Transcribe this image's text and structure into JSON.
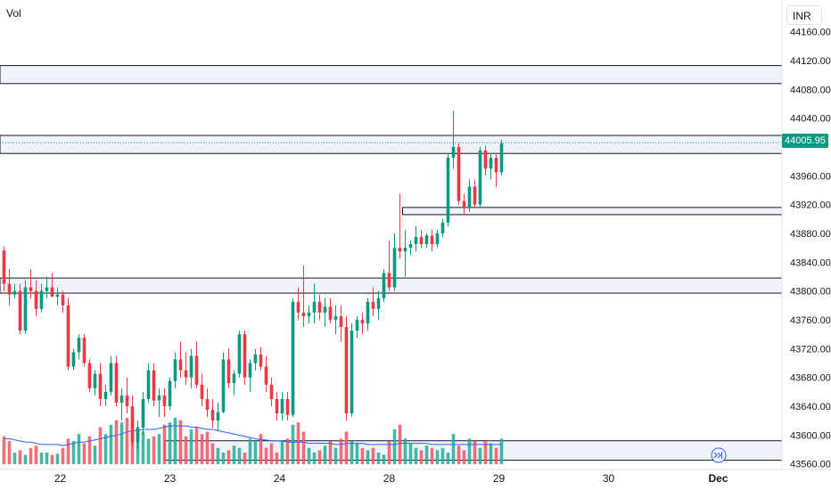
{
  "indicator_label": "Vol",
  "currency_label": "INR",
  "last_price_label": "44005.95",
  "colors": {
    "up": "#089981",
    "down": "#f23645",
    "up_vol": "#22ab94",
    "down_vol": "#f7525f",
    "ma_line": "#2962ff",
    "zone_fill": "#f0f3fa",
    "zone_stroke": "#131722"
  },
  "chart_data": {
    "type": "candlestick",
    "ylim": [
      43552,
      44180
    ],
    "y_ticks": [
      "44160.00",
      "44120.00",
      "44080.00",
      "44040.00",
      "43960.00",
      "43920.00",
      "43880.00",
      "43840.00",
      "43800.00",
      "43760.00",
      "43720.00",
      "43680.00",
      "43640.00",
      "43600.00",
      "43560.00"
    ],
    "x_ticks": [
      {
        "label": "22",
        "bar": 10.5
      },
      {
        "label": "23",
        "bar": 31
      },
      {
        "label": "24",
        "bar": 51.5
      },
      {
        "label": "28",
        "bar": 72
      },
      {
        "label": "29",
        "bar": 92.5
      },
      {
        "label": "30",
        "bar": 113
      },
      {
        "label": "Dec",
        "bar": 133.5,
        "bold": true
      }
    ],
    "last_price": 44005.95,
    "zones": [
      {
        "lo": 44088,
        "hi": 44113,
        "from_bar": -2,
        "to_bar": 160
      },
      {
        "lo": 43991,
        "hi": 44016,
        "from_bar": -2,
        "to_bar": 160
      },
      {
        "lo": 43906,
        "hi": 43916,
        "from_bar": 74.5,
        "to_bar": 160
      },
      {
        "lo": 43797,
        "hi": 43818,
        "from_bar": -2,
        "to_bar": 160
      },
      {
        "lo": 43565,
        "hi": 43592,
        "from_bar": 30,
        "to_bar": 160
      }
    ],
    "candles": [
      [
        43856,
        43862,
        43800,
        43810
      ],
      [
        43810,
        43830,
        43780,
        43795
      ],
      [
        43795,
        43810,
        43790,
        43800
      ],
      [
        43800,
        43810,
        43740,
        43745
      ],
      [
        43745,
        43815,
        43740,
        43805
      ],
      [
        43805,
        43830,
        43790,
        43800
      ],
      [
        43800,
        43815,
        43765,
        43775
      ],
      [
        43775,
        43810,
        43770,
        43800
      ],
      [
        43800,
        43820,
        43790,
        43805
      ],
      [
        43805,
        43825,
        43795,
        43792
      ],
      [
        43792,
        43805,
        43780,
        43795
      ],
      [
        43795,
        43800,
        43770,
        43780
      ],
      [
        43780,
        43790,
        43690,
        43695
      ],
      [
        43695,
        43720,
        43690,
        43715
      ],
      [
        43715,
        43740,
        43705,
        43735
      ],
      [
        43735,
        43740,
        43695,
        43700
      ],
      [
        43700,
        43705,
        43660,
        43665
      ],
      [
        43665,
        43690,
        43655,
        43685
      ],
      [
        43685,
        43700,
        43640,
        43650
      ],
      [
        43650,
        43670,
        43640,
        43660
      ],
      [
        43660,
        43710,
        43655,
        43700
      ],
      [
        43700,
        43710,
        43640,
        43645
      ],
      [
        43645,
        43665,
        43620,
        43655
      ],
      [
        43655,
        43680,
        43630,
        43640
      ],
      [
        43640,
        43655,
        43585,
        43590
      ],
      [
        43590,
        43620,
        43580,
        43610
      ],
      [
        43610,
        43660,
        43600,
        43650
      ],
      [
        43650,
        43700,
        43645,
        43690
      ],
      [
        43690,
        43700,
        43640,
        43648
      ],
      [
        43648,
        43665,
        43625,
        43655
      ],
      [
        43655,
        43665,
        43625,
        43640
      ],
      [
        43640,
        43680,
        43635,
        43675
      ],
      [
        43675,
        43715,
        43665,
        43705
      ],
      [
        43705,
        43730,
        43680,
        43690
      ],
      [
        43690,
        43715,
        43670,
        43680
      ],
      [
        43680,
        43720,
        43665,
        43710
      ],
      [
        43710,
        43730,
        43665,
        43670
      ],
      [
        43670,
        43685,
        43640,
        43650
      ],
      [
        43650,
        43665,
        43625,
        43635
      ],
      [
        43635,
        43650,
        43610,
        43620
      ],
      [
        43620,
        43645,
        43605,
        43632
      ],
      [
        43632,
        43715,
        43630,
        43705
      ],
      [
        43705,
        43720,
        43665,
        43672
      ],
      [
        43672,
        43690,
        43655,
        43685
      ],
      [
        43685,
        43745,
        43680,
        43740
      ],
      [
        43740,
        43745,
        43670,
        43680
      ],
      [
        43680,
        43705,
        43660,
        43700
      ],
      [
        43700,
        43720,
        43690,
        43712
      ],
      [
        43712,
        43722,
        43690,
        43695
      ],
      [
        43695,
        43710,
        43660,
        43670
      ],
      [
        43670,
        43680,
        43640,
        43650
      ],
      [
        43650,
        43660,
        43620,
        43630
      ],
      [
        43630,
        43660,
        43620,
        43650
      ],
      [
        43650,
        43660,
        43620,
        43628
      ],
      [
        43628,
        43790,
        43625,
        43785
      ],
      [
        43785,
        43805,
        43760,
        43770
      ],
      [
        43770,
        43835,
        43750,
        43765
      ],
      [
        43765,
        43780,
        43755,
        43770
      ],
      [
        43770,
        43810,
        43755,
        43785
      ],
      [
        43785,
        43795,
        43760,
        43770
      ],
      [
        43770,
        43790,
        43750,
        43778
      ],
      [
        43778,
        43790,
        43755,
        43760
      ],
      [
        43760,
        43780,
        43740,
        43765
      ],
      [
        43765,
        43780,
        43730,
        43750
      ],
      [
        43750,
        43765,
        43620,
        43630
      ],
      [
        43630,
        43755,
        43625,
        43745
      ],
      [
        43745,
        43765,
        43735,
        43760
      ],
      [
        43760,
        43770,
        43740,
        43755
      ],
      [
        43755,
        43790,
        43745,
        43785
      ],
      [
        43785,
        43805,
        43765,
        43775
      ],
      [
        43775,
        43800,
        43760,
        43790
      ],
      [
        43790,
        43830,
        43785,
        43825
      ],
      [
        43825,
        43870,
        43800,
        43805
      ],
      [
        43805,
        43880,
        43800,
        43860
      ],
      [
        43860,
        43935,
        43845,
        43855
      ],
      [
        43855,
        43885,
        43820,
        43860
      ],
      [
        43860,
        43870,
        43850,
        43865
      ],
      [
        43865,
        43890,
        43855,
        43875
      ],
      [
        43875,
        43885,
        43860,
        43865
      ],
      [
        43865,
        43880,
        43860,
        43877
      ],
      [
        43877,
        43885,
        43855,
        43865
      ],
      [
        43865,
        43885,
        43860,
        43880
      ],
      [
        43880,
        43900,
        43875,
        43895
      ],
      [
        43895,
        43990,
        43890,
        43985
      ],
      [
        43985,
        44050,
        43970,
        44000
      ],
      [
        44000,
        44005,
        43920,
        43925
      ],
      [
        43925,
        43935,
        43905,
        43915
      ],
      [
        43915,
        43955,
        43910,
        43945
      ],
      [
        43945,
        43955,
        43915,
        43920
      ],
      [
        43920,
        44000,
        43915,
        43995
      ],
      [
        43995,
        44002,
        43960,
        43970
      ],
      [
        43970,
        43990,
        43955,
        43985
      ],
      [
        43985,
        43990,
        43945,
        43965
      ],
      [
        43965,
        44010,
        43960,
        44005
      ]
    ],
    "volumes": [
      24,
      20,
      10,
      12,
      8,
      14,
      16,
      10,
      10,
      8,
      9,
      14,
      22,
      20,
      26,
      18,
      24,
      16,
      32,
      26,
      34,
      38,
      36,
      40,
      30,
      32,
      28,
      22,
      24,
      26,
      34,
      36,
      40,
      38,
      24,
      30,
      32,
      26,
      28,
      18,
      14,
      10,
      12,
      16,
      14,
      10,
      22,
      20,
      26,
      14,
      18,
      10,
      20,
      22,
      34,
      36,
      28,
      14,
      10,
      12,
      16,
      20,
      14,
      22,
      28,
      20,
      18,
      14,
      12,
      14,
      10,
      8,
      20,
      30,
      34,
      22,
      18,
      14,
      12,
      16,
      14,
      12,
      14,
      10,
      26,
      16,
      12,
      22,
      20,
      14,
      20,
      18,
      14,
      22
    ],
    "volume_ma": [
      22,
      22,
      21,
      20,
      19,
      19,
      18,
      17,
      17,
      17,
      17,
      16,
      17,
      18,
      19,
      19,
      20,
      21,
      22,
      23,
      24,
      25,
      26,
      28,
      29,
      29,
      30,
      30,
      30,
      31,
      32,
      33,
      33,
      33,
      33,
      32,
      32,
      31,
      30,
      30,
      29,
      28,
      27,
      26,
      25,
      24,
      23,
      22,
      21,
      21,
      20,
      20,
      20,
      19,
      19,
      19,
      19,
      18,
      18,
      18,
      18,
      18,
      17,
      17,
      18,
      18,
      18,
      18,
      17,
      17,
      17,
      17,
      17,
      17,
      18,
      18,
      18,
      18,
      18,
      18,
      17,
      17,
      17,
      17,
      17,
      17,
      17,
      17,
      17,
      17,
      17,
      17,
      17,
      17
    ]
  }
}
